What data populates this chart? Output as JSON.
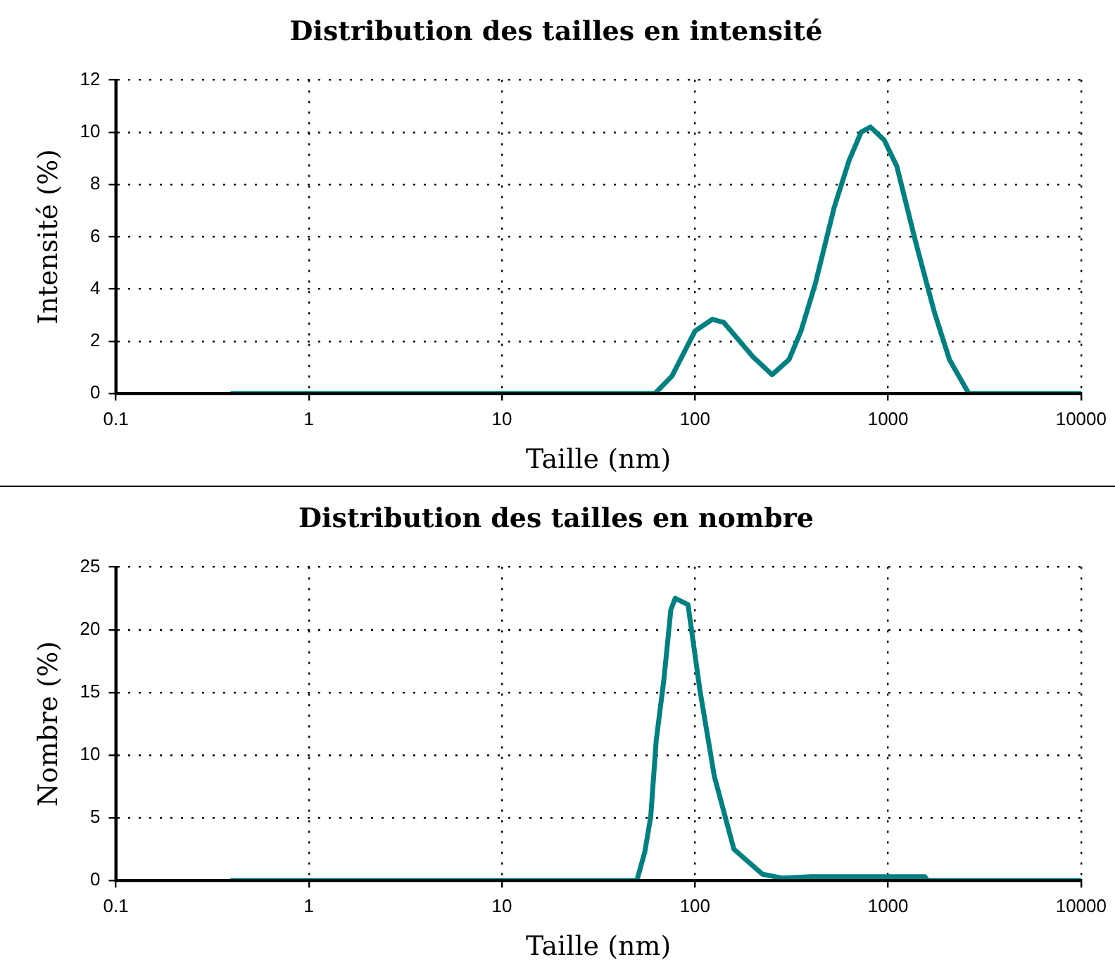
{
  "chart_data": [
    {
      "type": "line",
      "title": "Distribution des tailles en intensité",
      "xlabel": "Taille (nm)",
      "ylabel": "Intensité (%)",
      "log": "x",
      "grid": true,
      "legend": false,
      "marker": "none",
      "line_style": "solid",
      "xlim": [
        0.1,
        10000
      ],
      "xticks": [
        0.1,
        1,
        10,
        100,
        1000,
        10000
      ],
      "ylim": [
        0,
        12
      ],
      "yticks": [
        0,
        2,
        4,
        6,
        8,
        10,
        12
      ],
      "series": [
        {
          "color": "#008080",
          "x": [
            0.4,
            62,
            76,
            100,
            123,
            141,
            200,
            251,
            307,
            354,
            420,
            525,
            627,
            725,
            810,
            955,
            1110,
            1390,
            1740,
            2080,
            2620,
            10000
          ],
          "values": [
            0,
            0,
            0.67,
            2.39,
            2.84,
            2.72,
            1.4,
            0.72,
            1.3,
            2.39,
            4.2,
            7.1,
            8.9,
            10,
            10.2,
            9.7,
            8.7,
            5.8,
            3.1,
            1.3,
            0,
            0
          ]
        }
      ]
    },
    {
      "type": "line",
      "title": "Distribution des tailles en nombre",
      "xlabel": "Taille (nm)",
      "ylabel": "Nombre (%)",
      "log": "x",
      "grid": true,
      "legend": false,
      "marker": "none",
      "line_style": "solid",
      "xlim": [
        0.1,
        10000
      ],
      "xticks": [
        0.1,
        1,
        10,
        100,
        1000,
        10000
      ],
      "ylim": [
        0,
        25
      ],
      "yticks": [
        0,
        5,
        10,
        15,
        20,
        25
      ],
      "series": [
        {
          "color": "#008080",
          "x": [
            0.4,
            50,
            55,
            59,
            63,
            69,
            75,
            79,
            92,
            106,
            126,
            159,
            224,
            282,
            400,
            800,
            1550,
            1600,
            10000
          ],
          "values": [
            0,
            0,
            2.3,
            5.1,
            11.2,
            16,
            21.6,
            22.5,
            22,
            15.2,
            8.3,
            2.5,
            0.5,
            0.2,
            0.3,
            0.3,
            0.3,
            0,
            0
          ]
        }
      ]
    }
  ]
}
